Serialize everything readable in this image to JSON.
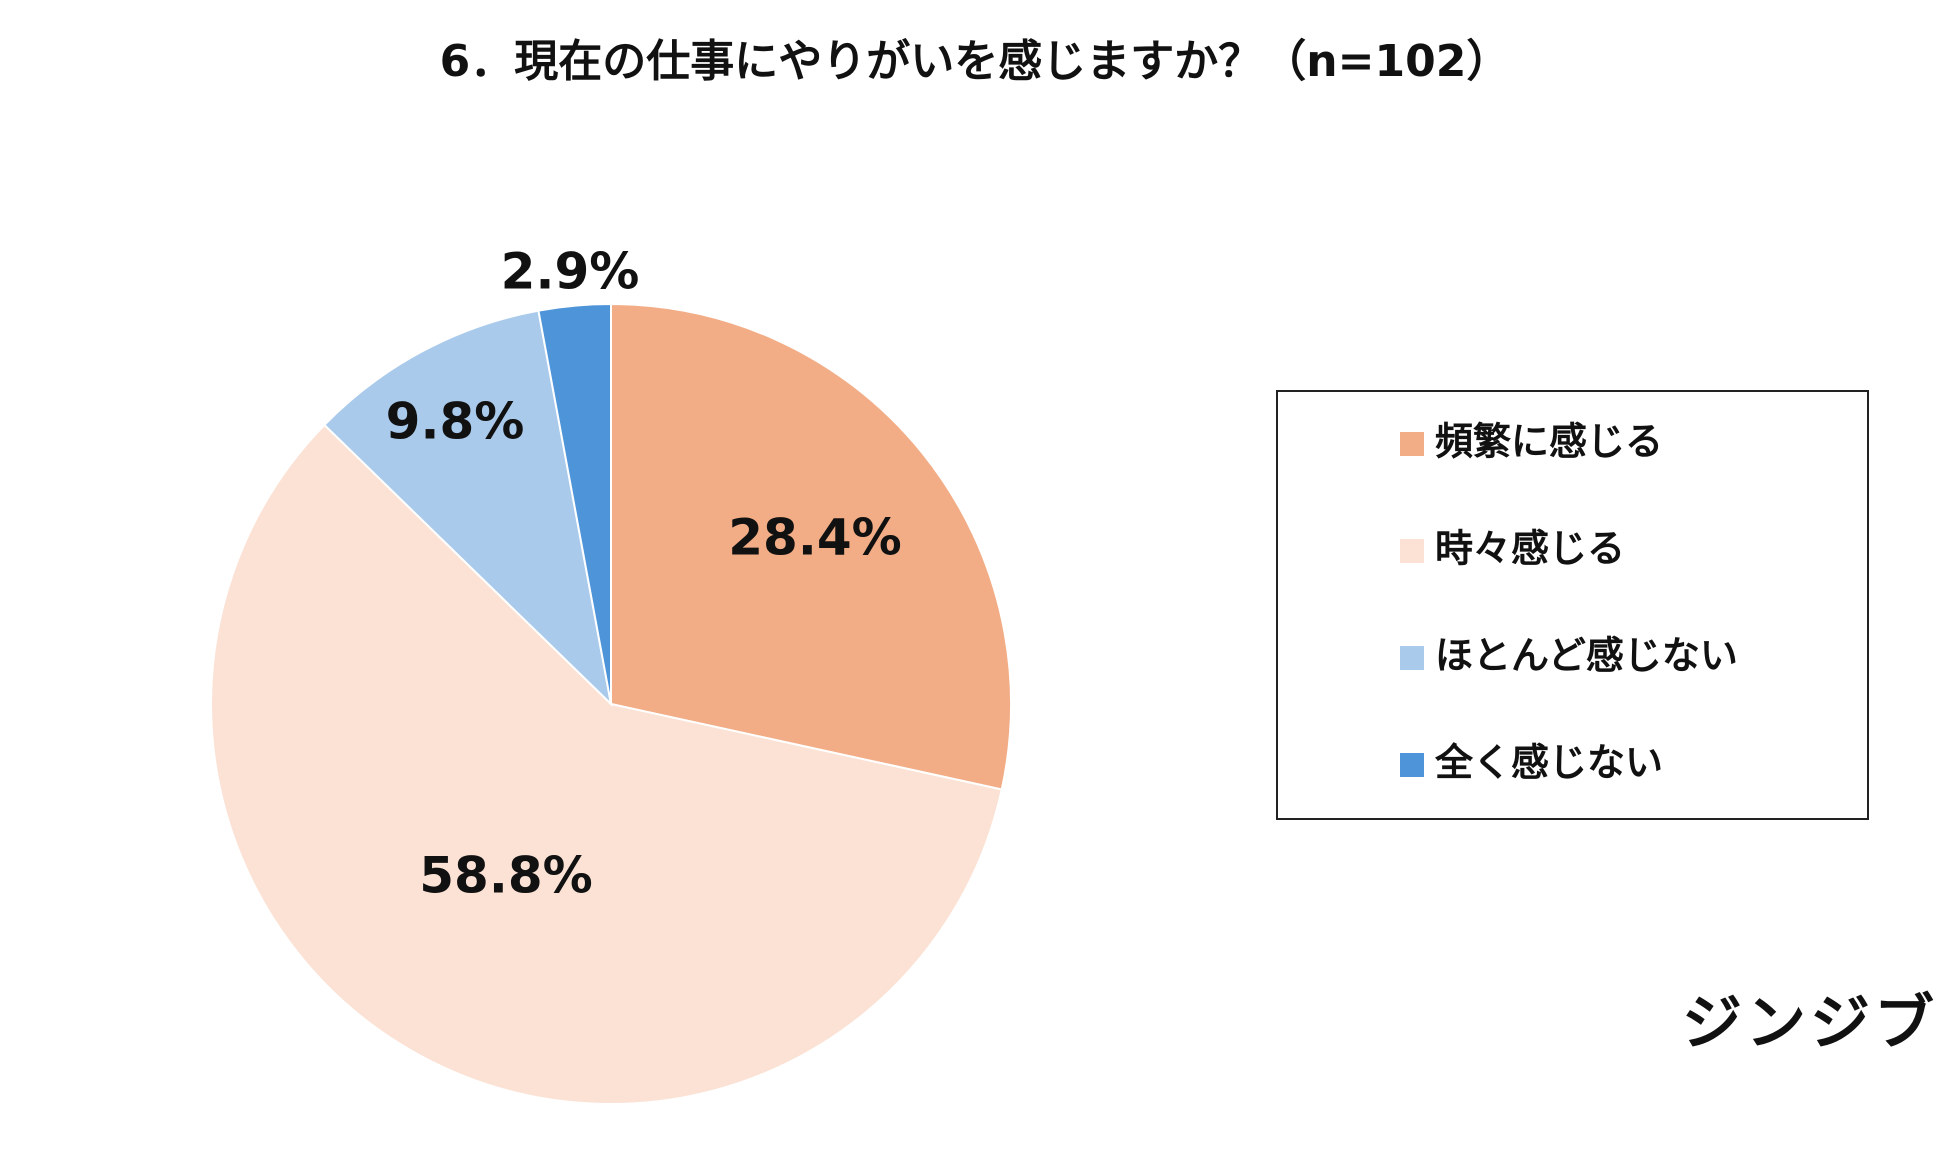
{
  "chart_data": {
    "type": "pie",
    "title": "6．現在の仕事にやりがいを感じますか？（n=102）",
    "categories": [
      "頻繁に感じる",
      "時々感じる",
      "ほとんど感じない",
      "全く感じない"
    ],
    "values": [
      28.4,
      58.8,
      9.8,
      2.9
    ],
    "value_labels": [
      "28.4%",
      "58.8%",
      "9.8%",
      "2.9%"
    ],
    "colors": [
      "#F2AD86",
      "#FBE2D5",
      "#A9CAEB",
      "#4E94D8"
    ],
    "legend": "right"
  },
  "logo": "ジンジブ"
}
